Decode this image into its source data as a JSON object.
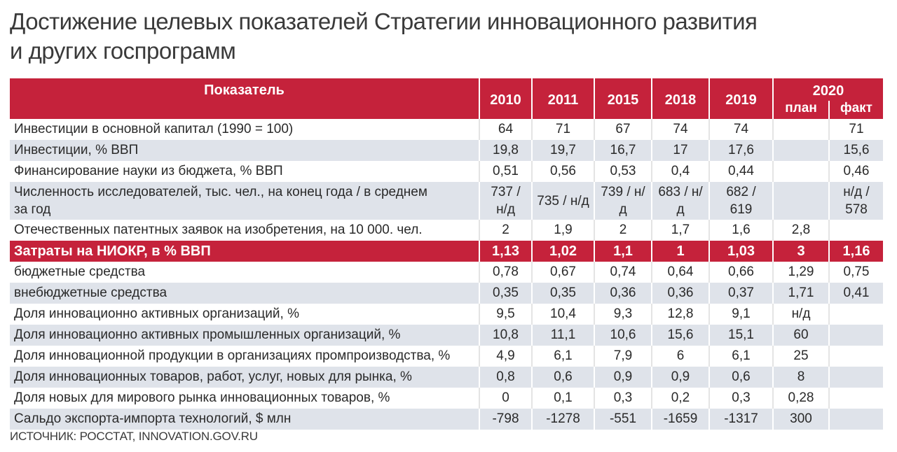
{
  "title": {
    "line1": "Достижение целевых показателей Стратегии инновационного развития",
    "line2": "и других госпрограмм"
  },
  "table": {
    "header": {
      "indicator": "Показатель",
      "years": [
        "2010",
        "2011",
        "2015",
        "2018",
        "2019"
      ],
      "year_2020": "2020",
      "plan": "план",
      "fact": "факт"
    },
    "rows": [
      {
        "name": "Инвестиции в основной капитал (1990 = 100)",
        "v": [
          "64",
          "71",
          "67",
          "74",
          "74",
          "",
          "71"
        ],
        "style": "w"
      },
      {
        "name": "Инвестиции, % ВВП",
        "v": [
          "19,8",
          "19,7",
          "16,7",
          "17",
          "17,6",
          "",
          "15,6"
        ],
        "style": "g"
      },
      {
        "name": "Финансирование науки из бюджета, % ВВП",
        "v": [
          "0,51",
          "0,56",
          "0,53",
          "0,4",
          "0,44",
          "",
          "0,46"
        ],
        "style": "w"
      },
      {
        "name": "Численность исследователей, тыс. чел., на конец года / в среднем за год",
        "v": [
          "737 / н/д",
          "735 / н/д",
          "739 / н/д",
          "683 / н/д",
          "682 / 619",
          "",
          "н/д / 578"
        ],
        "style": "g"
      },
      {
        "name": "Отечественных патентных заявок на изобретения, на 10 000. чел.",
        "v": [
          "2",
          "1,9",
          "2",
          "1,7",
          "1,6",
          "2,8",
          ""
        ],
        "style": "w"
      },
      {
        "name": "Затраты на НИОКР, в % ВВП",
        "v": [
          "1,13",
          "1,02",
          "1,1",
          "1",
          "1,03",
          "3",
          "1,16"
        ],
        "style": "hl"
      },
      {
        "name": "бюджетные средства",
        "v": [
          "0,78",
          "0,67",
          "0,74",
          "0,64",
          "0,66",
          "1,29",
          "0,75"
        ],
        "style": "w"
      },
      {
        "name": "внебюджетные средства",
        "v": [
          "0,35",
          "0,35",
          "0,36",
          "0,36",
          "0,37",
          "1,71",
          "0,41"
        ],
        "style": "g"
      },
      {
        "name": "Доля инновационно активных организаций, %",
        "v": [
          "9,5",
          "10,4",
          "9,3",
          "12,8",
          "9,1",
          "н/д",
          ""
        ],
        "style": "w"
      },
      {
        "name": "Доля инновационно активных промышленных организаций, %",
        "v": [
          "10,8",
          "11,1",
          "10,6",
          "15,6",
          "15,1",
          "60",
          ""
        ],
        "style": "g"
      },
      {
        "name": "Доля инновационной продукции в организациях промпроизводства, %",
        "v": [
          "4,9",
          "6,1",
          "7,9",
          "6",
          "6,1",
          "25",
          ""
        ],
        "style": "w"
      },
      {
        "name": "Доля инновационных товаров, работ, услуг, новых для рынка, %",
        "v": [
          "0,8",
          "0,6",
          "0,9",
          "0,9",
          "0,6",
          "8",
          ""
        ],
        "style": "g"
      },
      {
        "name": "Доля новых для мирового рынка инновационных товаров, %",
        "v": [
          "0",
          "0,1",
          "0,3",
          "0,2",
          "0,3",
          "0,28",
          ""
        ],
        "style": "w"
      },
      {
        "name": "Сальдо экспорта-импорта технологий, $ млн",
        "v": [
          "-798",
          "-1278",
          "-551",
          "-1659",
          "-1317",
          "300",
          ""
        ],
        "style": "g"
      }
    ]
  },
  "source": "ИСТОЧНИК: РОССТАТ, INNOVATION.GOV.RU",
  "colors": {
    "header_red": "#c5223b",
    "stripe_gray": "#dfe3ea"
  }
}
